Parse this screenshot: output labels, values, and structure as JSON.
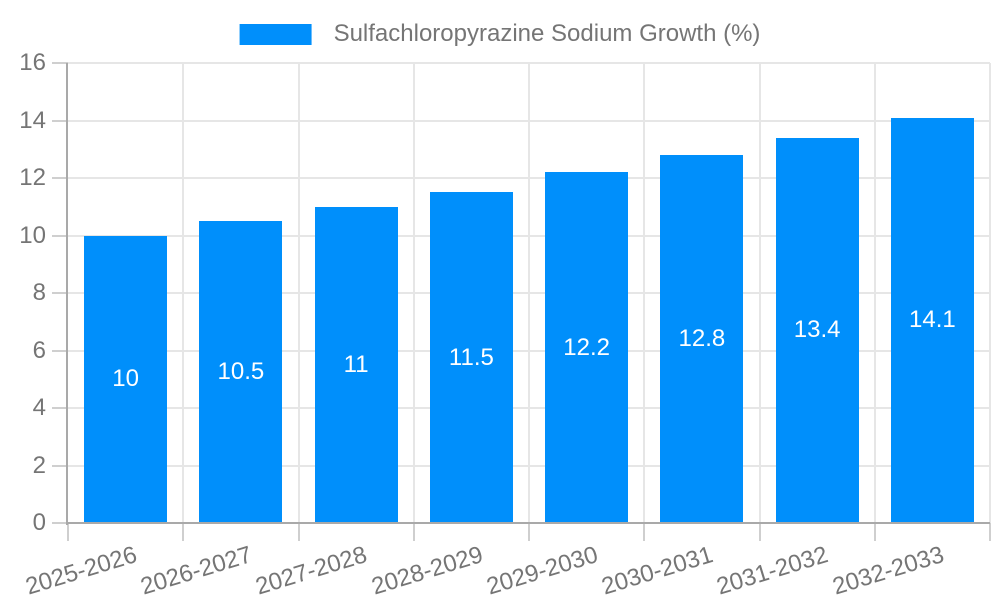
{
  "chart_data": {
    "type": "bar",
    "title": "",
    "legend_label": "Sulfachloropyrazine Sodium Growth (%)",
    "legend_position": "top",
    "categories": [
      "2025-2026",
      "2026-2027",
      "2027-2028",
      "2028-2029",
      "2029-2030",
      "2030-2031",
      "2031-2032",
      "2032-2033"
    ],
    "values": [
      10,
      10.5,
      11,
      11.5,
      12.2,
      12.8,
      13.4,
      14.1
    ],
    "value_labels": [
      "10",
      "10.5",
      "11",
      "11.5",
      "12.2",
      "12.8",
      "13.4",
      "14.1"
    ],
    "ylim": [
      0,
      16
    ],
    "yticks": [
      0,
      2,
      4,
      6,
      8,
      10,
      12,
      14,
      16
    ],
    "grid": true,
    "x_label_rotation_deg": -17,
    "colors": {
      "bar": "#008FFB",
      "data_label": "#FFFFFF",
      "axis_text": "#757575",
      "legend_text": "#757575",
      "axis_line": "#A9A9A9",
      "tick_line": "#CFCFCF",
      "grid_line": "#E6E6E6",
      "background": "#FFFFFF"
    }
  }
}
